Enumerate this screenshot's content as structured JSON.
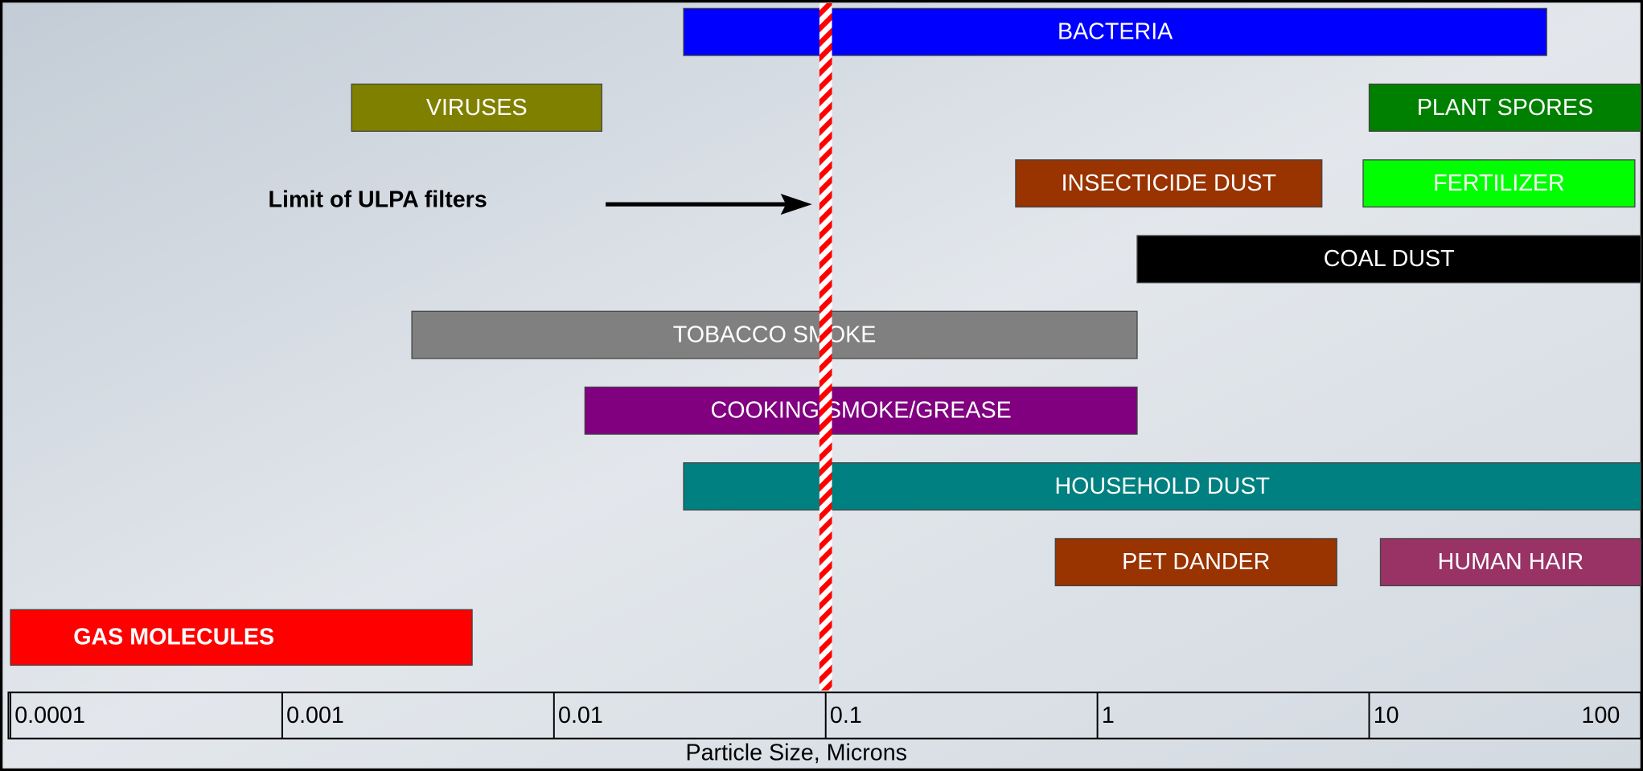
{
  "chart_data": {
    "type": "range",
    "x_label": "Particle Size, Microns",
    "xscale": "log",
    "xlim": [
      0.0001,
      100
    ],
    "xticks": [
      0.0001,
      0.001,
      0.01,
      0.1,
      1,
      10,
      100
    ],
    "series": [
      {
        "name": "BACTERIA",
        "color": "#0000ff",
        "values": [
          0.03,
          45
        ]
      },
      {
        "name": "VIRUSES",
        "color": "#808000",
        "values": [
          0.0018,
          0.015
        ]
      },
      {
        "name": "PLANT SPORES",
        "color": "#008000",
        "values": [
          10,
          100
        ]
      },
      {
        "name": "INSECTICIDE DUST",
        "color": "#993300",
        "values": [
          0.5,
          6.7
        ]
      },
      {
        "name": "FERTILIZER",
        "color": "#00ff00",
        "values": [
          9.5,
          95
        ]
      },
      {
        "name": "COAL DUST",
        "color": "#000000",
        "values": [
          1.4,
          100
        ]
      },
      {
        "name": "TOBACCO SMOKE",
        "color": "#808080",
        "values": [
          0.003,
          1.4
        ]
      },
      {
        "name": "COOKING SMOKE/GREASE",
        "color": "#800080",
        "values": [
          0.013,
          1.4
        ]
      },
      {
        "name": "HOUSEHOLD DUST",
        "color": "#008080",
        "values": [
          0.03,
          100
        ]
      },
      {
        "name": "PET DANDER",
        "color": "#993300",
        "values": [
          0.7,
          7.6
        ]
      },
      {
        "name": "HUMAN HAIR",
        "color": "#993366",
        "values": [
          11,
          100
        ]
      },
      {
        "name": "GAS MOLECULES",
        "color": "#ff0000",
        "values": [
          0.0001,
          0.005
        ]
      }
    ],
    "annotations": [
      {
        "text": "Limit of ULPA filters",
        "x": 0.1
      }
    ]
  }
}
